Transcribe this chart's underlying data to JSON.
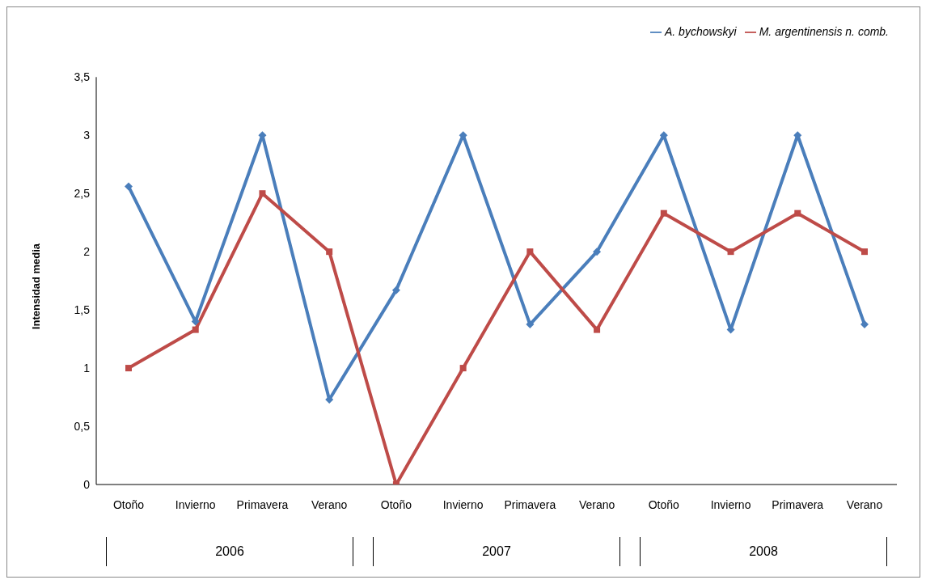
{
  "chart_data": {
    "type": "line",
    "ylabel": "Intensidad media",
    "categories": [
      "Otoño",
      "Invierno",
      "Primavera",
      "Verano",
      "Otoño",
      "Invierno",
      "Primavera",
      "Verano",
      "Otoño",
      "Invierno",
      "Primavera",
      "Verano"
    ],
    "series": [
      {
        "name": "A. bychowskyi",
        "color": "#4a7ebb",
        "marker": "diamond",
        "values": [
          2.56,
          1.4,
          3,
          0.73,
          1.67,
          3,
          1.375,
          2,
          3,
          1.33,
          3,
          1.375
        ]
      },
      {
        "name": "M. argentinensis n. comb.",
        "color": "#be4b48",
        "marker": "square",
        "values": [
          1,
          1.33,
          2.5,
          2,
          0,
          1,
          2,
          1.33,
          2.33,
          2,
          2.33,
          2
        ]
      }
    ],
    "ylim": [
      0,
      3.5
    ],
    "yticks": [
      0,
      {
        "value": 0.5,
        "label": "0,5"
      },
      1,
      {
        "value": 1.5,
        "label": "1,5"
      },
      2,
      {
        "value": 2.5,
        "label": "2,5"
      },
      3,
      {
        "value": 3.5,
        "label": "3,5"
      }
    ],
    "grid": false,
    "legend": "top right",
    "annotations": [
      "2006",
      "2007",
      "2008"
    ]
  }
}
